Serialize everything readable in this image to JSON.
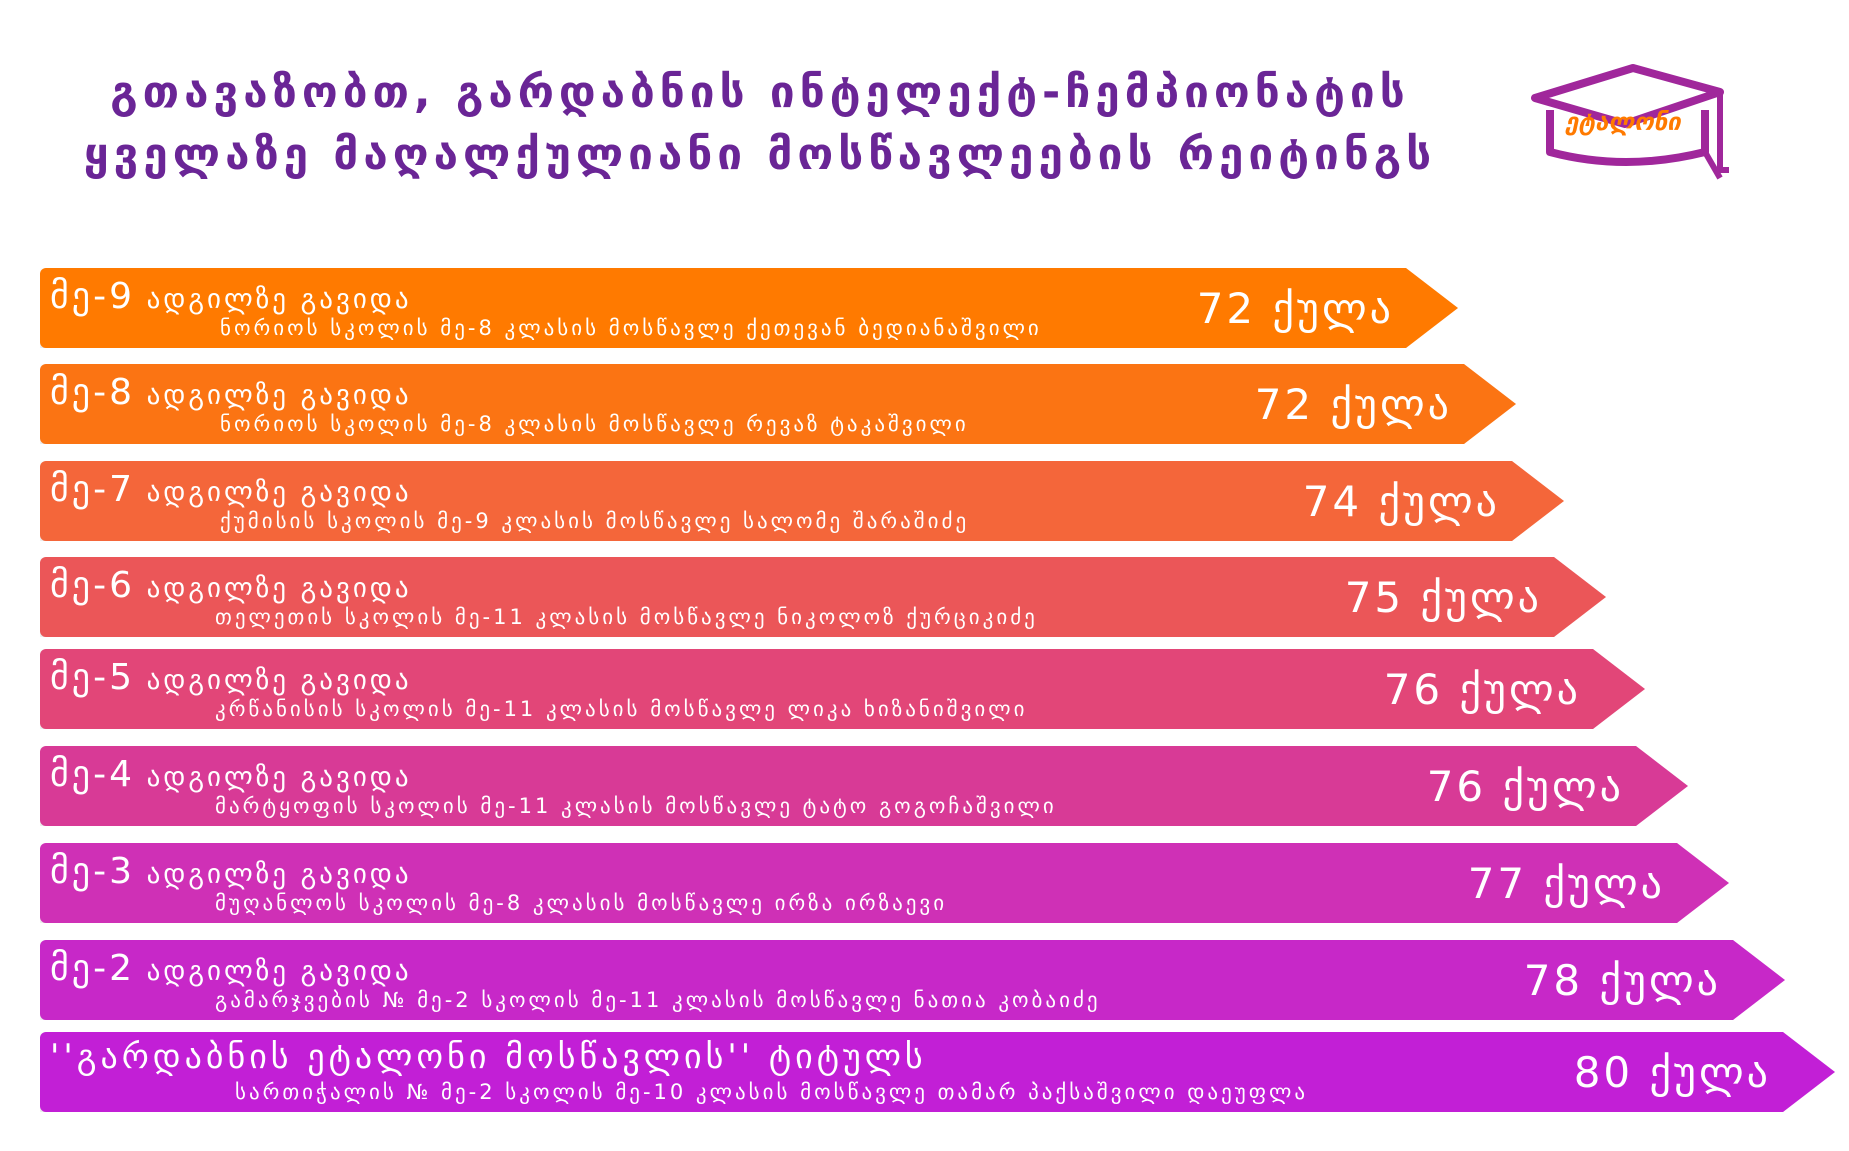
{
  "header": {
    "title_line1": "გთავაზობთ, გარდაბნის ინტელექტ-ჩემპიონატის",
    "title_line2": "ყველაზე მაღალქულიანი მოსწავლეების რეიტინგს"
  },
  "logo": {
    "text": "ეტალონი",
    "icon": "graduation-cap-icon"
  },
  "rankings": [
    {
      "place_num": "მე-9",
      "place_suffix": " ადგილზე გავიდა",
      "student": "ნორიოს სკოლის მე-8 კლასის მოსწავლე ქეთევან ბედიანაშვილი",
      "score": "72 ქულა",
      "color": "#ff7a00"
    },
    {
      "place_num": "მე-8",
      "place_suffix": " ადგილზე გავიდა",
      "student": "ნორიოს სკოლის მე-8 კლასის მოსწავლე რევაზ ტაკაშვილი",
      "score": "72 ქულა",
      "color": "#fb7413"
    },
    {
      "place_num": "მე-7",
      "place_suffix": " ადგილზე გავიდა",
      "student": "ქუმისის სკოლის მე-9 კლასის მოსწავლე სალომე შარაშიძე",
      "score": "74 ქულა",
      "color": "#f4663a"
    },
    {
      "place_num": "მე-6",
      "place_suffix": " ადგილზე გავიდა",
      "student": "თელეთის სკოლის მე-11 კლასის მოსწავლე ნიკოლოზ ქურციკიძე",
      "score": "75 ქულა",
      "color": "#eb5658"
    },
    {
      "place_num": "მე-5",
      "place_suffix": " ადგილზე გავიდა",
      "student": "კრწანისის სკოლის მე-11 კლასის მოსწავლე ლიკა ხიზანიშვილი",
      "score": "76 ქულა",
      "color": "#e24678"
    },
    {
      "place_num": "მე-4",
      "place_suffix": " ადგილზე გავიდა",
      "student": "მარტყოფის სკოლის მე-11 კლასის მოსწავლე ტატო გოგოჩაშვილი",
      "score": "76 ქულა",
      "color": "#d83a96"
    },
    {
      "place_num": "მე-3",
      "place_suffix": " ადგილზე გავიდა",
      "student": "მუღანლოს სკოლის მე-8 კლასის მოსწავლე ირზა ირზაევი",
      "score": "77 ქულა",
      "color": "#cf30b6"
    },
    {
      "place_num": "მე-2",
      "place_suffix": " ადგილზე გავიდა",
      "student": "გამარჯვების № მე-2 სკოლის მე-11 კლასის მოსწავლე ნათია კობაიძე",
      "score": "78 ქულა",
      "color": "#c728c8"
    },
    {
      "place_num": "",
      "place_suffix": "''გარდაბნის ეტალონი მოსწავლის'' ტიტულს",
      "student": "სართიჭალის № მე-2 სკოლის მე-10 კლასის მოსწავლე თამარ პაქსაშვილი დაეუფლა",
      "score": "80 ქულა",
      "color": "#c21fd6"
    }
  ]
}
